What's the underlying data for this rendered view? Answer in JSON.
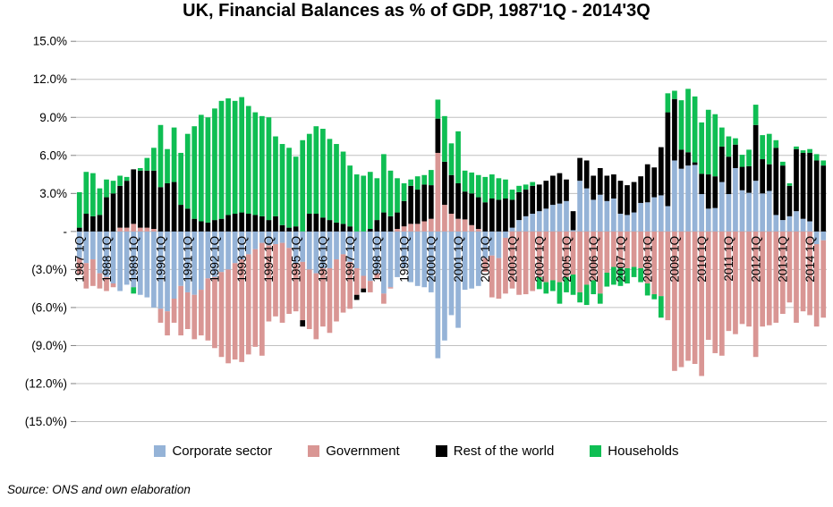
{
  "title": "UK, Financial Balances as % of GDP, 1987'1Q - 2014'3Q",
  "source": "Source: ONS and own elaboration",
  "colors": {
    "corporate": "#95B3D7",
    "government": "#D99694",
    "rest_of_world": "#000000",
    "households": "#0FBE53",
    "gridline": "#C0C0C0",
    "tick": "#808080",
    "text": "#000000"
  },
  "y_axis": {
    "ticks": [
      {
        "v": 15,
        "label": "15.0%"
      },
      {
        "v": 12,
        "label": "12.0%"
      },
      {
        "v": 9,
        "label": "9.0%"
      },
      {
        "v": 6,
        "label": "6.0%"
      },
      {
        "v": 3,
        "label": "3.0%"
      },
      {
        "v": 0,
        "label": "-"
      },
      {
        "v": -3,
        "label": "(3.0%)"
      },
      {
        "v": -6,
        "label": "(6.0%)"
      },
      {
        "v": -9,
        "label": "(9.0%)"
      },
      {
        "v": -12,
        "label": "(12.0%)"
      },
      {
        "v": -15,
        "label": "(15.0%)"
      }
    ]
  },
  "x_axis": {
    "tick_every": 4,
    "labels": [
      "1987 1Q",
      "1988 1Q",
      "1989 1Q",
      "1990 1Q",
      "1991 1Q",
      "1992 1Q",
      "1993 1Q",
      "1994 1Q",
      "1995 1Q",
      "1996 1Q",
      "1997 1Q",
      "1998 1Q",
      "1999 1Q",
      "2000 1Q",
      "2001 1Q",
      "2002 1Q",
      "2003 1Q",
      "2004 1Q",
      "2005 1Q",
      "2006 1Q",
      "2007 1Q",
      "2008 1Q",
      "2009 1Q",
      "2010 1Q",
      "2011 1Q",
      "2012 1Q",
      "2013 1Q",
      "2014 1Q"
    ]
  },
  "chart_data": {
    "type": "bar",
    "stacked": true,
    "x_start": "1987Q1",
    "x_end": "2014Q3",
    "n_quarters": 111,
    "ylim": [
      -15,
      15
    ],
    "ytick_step": 3,
    "grid": true,
    "legend_position": "bottom",
    "units": "% of GDP",
    "series": [
      {
        "name": "Corporate sector",
        "color": "#95B3D7",
        "values": [
          -2.1,
          -2.5,
          -2.2,
          -3.3,
          -3.6,
          -4.1,
          -4.7,
          -4.2,
          -4.4,
          -5.0,
          -5.2,
          -6.0,
          -6.1,
          -6.3,
          -5.3,
          -4.3,
          -4.8,
          -5.0,
          -4.6,
          -3.7,
          -3.6,
          -3.2,
          -3.0,
          -2.5,
          -2.2,
          -1.8,
          -1.4,
          -0.9,
          -1.1,
          -1.0,
          -0.9,
          -1.3,
          -2.5,
          -2.4,
          -3.0,
          -3.3,
          -2.9,
          -2.9,
          -2.2,
          -1.8,
          -2.4,
          -2.9,
          -3.5,
          -3.9,
          -3.3,
          -4.9,
          -4.4,
          -3.6,
          -2.9,
          -4.0,
          -4.3,
          -4.4,
          -4.8,
          -10.0,
          -8.6,
          -6.6,
          -7.6,
          -4.6,
          -4.5,
          -4.3,
          -2.1,
          -1.9,
          -2.1,
          -0.5,
          0.3,
          0.9,
          1.2,
          1.4,
          1.6,
          1.8,
          2.1,
          2.2,
          2.4,
          0.1,
          4.0,
          3.4,
          2.5,
          2.9,
          2.4,
          2.6,
          1.4,
          1.3,
          1.5,
          2.25,
          2.3,
          2.7,
          2.85,
          2.0,
          5.6,
          4.95,
          5.2,
          5.25,
          2.95,
          1.8,
          1.85,
          3.9,
          2.95,
          5.0,
          3.25,
          3.05,
          4.0,
          3.0,
          3.2,
          1.3,
          0.9,
          1.2,
          1.6,
          1.0,
          0.8,
          -1.0,
          -0.7
        ]
      },
      {
        "name": "Government",
        "color": "#D99694",
        "values": [
          -1.3,
          -2.0,
          -2.1,
          -1.2,
          -1.1,
          -0.3,
          0.3,
          0.3,
          0.6,
          0.3,
          0.3,
          0.2,
          -1.1,
          -1.9,
          -1.9,
          -3.9,
          -2.9,
          -3.5,
          -3.6,
          -4.9,
          -5.6,
          -6.7,
          -7.4,
          -7.6,
          -8.1,
          -7.9,
          -7.7,
          -8.9,
          -6.0,
          -5.7,
          -6.3,
          -5.2,
          -3.8,
          -4.6,
          -4.7,
          -5.2,
          -4.6,
          -5.1,
          -4.9,
          -4.6,
          -3.7,
          -2.1,
          -1.0,
          -0.9,
          -0.4,
          -0.8,
          -0.1,
          0.2,
          0.4,
          0.6,
          0.6,
          0.8,
          1.0,
          6.2,
          2.1,
          1.4,
          1.0,
          0.95,
          0.5,
          0.2,
          -1.1,
          -3.3,
          -3.2,
          -4.4,
          -4.5,
          -5.0,
          -4.95,
          -4.7,
          -3.6,
          -4.0,
          -3.85,
          -4.0,
          -3.6,
          -3.4,
          -4.8,
          -4.2,
          -3.85,
          -4.9,
          -3.25,
          -2.8,
          -2.9,
          -2.9,
          -2.8,
          -2.9,
          -4.1,
          -4.95,
          -5.1,
          -7.0,
          -11.0,
          -10.7,
          -10.2,
          -10.45,
          -11.4,
          -8.55,
          -9.6,
          -9.8,
          -7.85,
          -8.1,
          -7.3,
          -7.5,
          -9.9,
          -7.5,
          -7.4,
          -7.2,
          -6.5,
          -5.6,
          -7.2,
          -6.3,
          -6.6,
          -6.5,
          -6.1
        ]
      },
      {
        "name": "Rest of the world",
        "color": "#000000",
        "values": [
          0.3,
          1.4,
          1.2,
          1.3,
          2.7,
          3.0,
          3.3,
          3.7,
          4.3,
          4.5,
          4.5,
          4.6,
          3.5,
          3.8,
          3.9,
          2.1,
          1.8,
          1.0,
          0.8,
          0.7,
          0.9,
          1.0,
          1.3,
          1.4,
          1.5,
          1.4,
          1.3,
          1.2,
          0.9,
          1.2,
          0.5,
          0.3,
          0.4,
          -0.5,
          1.4,
          1.4,
          1.1,
          0.9,
          0.7,
          0.6,
          0.4,
          -0.4,
          -0.3,
          0.2,
          0.9,
          1.5,
          1.2,
          1.3,
          2.0,
          3.0,
          2.7,
          2.9,
          2.65,
          2.7,
          3.4,
          3.05,
          2.8,
          2.2,
          2.5,
          2.5,
          2.3,
          2.6,
          2.5,
          2.6,
          2.2,
          2.2,
          2.1,
          2.2,
          2.1,
          2.2,
          2.3,
          2.4,
          1.7,
          1.5,
          1.8,
          2.2,
          1.9,
          2.1,
          2.0,
          1.9,
          2.6,
          2.35,
          2.4,
          2.1,
          3.0,
          2.35,
          3.8,
          7.4,
          4.85,
          1.5,
          1.05,
          0.2,
          1.6,
          2.7,
          2.5,
          2.8,
          2.95,
          1.85,
          1.85,
          2.1,
          4.4,
          2.7,
          2.1,
          5.3,
          4.3,
          2.4,
          4.9,
          5.2,
          5.4,
          5.6,
          5.2
        ]
      },
      {
        "name": "Households",
        "color": "#0FBE53",
        "values": [
          2.8,
          3.3,
          3.4,
          2.1,
          1.4,
          1.0,
          0.8,
          0.3,
          -0.5,
          0.2,
          1.0,
          1.8,
          4.9,
          2.7,
          4.3,
          4.1,
          5.9,
          7.3,
          8.4,
          8.3,
          8.8,
          9.3,
          9.2,
          8.9,
          9.1,
          8.5,
          8.1,
          7.9,
          8.1,
          6.3,
          6.4,
          6.3,
          5.5,
          7.2,
          6.3,
          6.9,
          7.0,
          6.4,
          6.2,
          5.7,
          4.8,
          4.5,
          4.4,
          4.5,
          3.3,
          4.6,
          3.6,
          2.7,
          1.4,
          0.5,
          1.05,
          0.75,
          1.2,
          1.5,
          3.6,
          2.5,
          4.1,
          1.65,
          1.65,
          1.75,
          2.0,
          1.9,
          1.7,
          1.5,
          0.8,
          0.5,
          0.4,
          0.3,
          -0.95,
          -0.9,
          -0.85,
          -1.7,
          -1.2,
          -1.6,
          -0.8,
          -1.6,
          -1.1,
          -0.8,
          -1.1,
          -1.4,
          -1.4,
          -1.2,
          -0.8,
          -1.1,
          -0.95,
          -0.4,
          -1.7,
          1.5,
          0.65,
          3.9,
          5.0,
          5.2,
          4.05,
          5.1,
          4.9,
          1.5,
          1.6,
          0.5,
          0.95,
          1.3,
          1.6,
          1.9,
          2.4,
          0.6,
          0.3,
          0.2,
          0.2,
          0.2,
          0.3,
          0.5,
          0.4
        ]
      }
    ]
  }
}
